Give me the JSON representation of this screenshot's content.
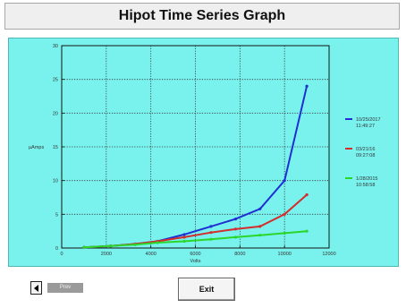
{
  "window": {
    "title": "Hipot Time Series Graph"
  },
  "footer": {
    "exit_label": "Exit",
    "prev_label": "Prev"
  },
  "colors": {
    "panel": "#79f2ee",
    "grid": "#333333",
    "series": [
      "#1f2fd1",
      "#d32d2d",
      "#2bd62b"
    ]
  },
  "chart_data": {
    "type": "line",
    "title": "",
    "xlabel": "Volts",
    "ylabel": "µAmps",
    "xlim": [
      0,
      12000
    ],
    "ylim": [
      0,
      30
    ],
    "xticks": [
      0,
      2000,
      4000,
      6000,
      8000,
      10000,
      12000
    ],
    "yticks": [
      0,
      5,
      10,
      15,
      20,
      25,
      30
    ],
    "grid": true,
    "legend": "right",
    "series": [
      {
        "name": "10/25/2017 11:49:27",
        "color": "#1f2fd1",
        "x": [
          1000,
          2200,
          3300,
          4300,
          5500,
          6700,
          7800,
          8900,
          10000,
          11000
        ],
        "y": [
          0.1,
          0.3,
          0.6,
          1.0,
          2.0,
          3.2,
          4.3,
          5.8,
          10.0,
          24.0
        ]
      },
      {
        "name": "03/21/16 09:27:08",
        "color": "#d32d2d",
        "x": [
          1000,
          2200,
          3300,
          4300,
          5500,
          6700,
          7800,
          8900,
          10000,
          11000
        ],
        "y": [
          0.1,
          0.3,
          0.6,
          1.0,
          1.6,
          2.3,
          2.8,
          3.2,
          5.0,
          7.9
        ]
      },
      {
        "name": "1/28/2015 10:58:58",
        "color": "#2bd62b",
        "x": [
          1000,
          2200,
          3300,
          4300,
          5500,
          6700,
          7800,
          8900,
          10000,
          11000
        ],
        "y": [
          0.1,
          0.3,
          0.5,
          0.8,
          1.0,
          1.3,
          1.6,
          1.9,
          2.2,
          2.5
        ]
      }
    ]
  }
}
